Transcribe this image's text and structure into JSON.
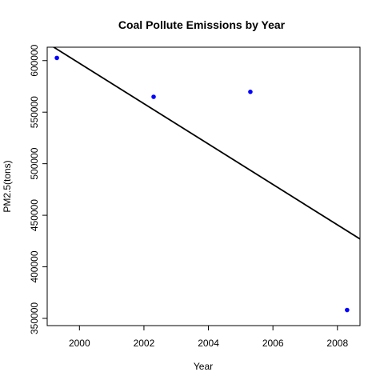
{
  "chart_data": {
    "type": "scatter",
    "title": "Coal Pollute Emissions by Year",
    "xlabel": "Year",
    "ylabel": "PM2.5(tons)",
    "xlim": [
      1999.0,
      2008.7
    ],
    "ylim": [
      343000,
      613000
    ],
    "x_ticks": [
      2000,
      2002,
      2004,
      2006,
      2008
    ],
    "y_ticks": [
      350000,
      400000,
      450000,
      500000,
      550000,
      600000
    ],
    "grid": false,
    "legend": "none",
    "points": [
      {
        "x": 1999.3,
        "y": 602600
      },
      {
        "x": 2002.3,
        "y": 564900
      },
      {
        "x": 2005.3,
        "y": 569700
      },
      {
        "x": 2008.3,
        "y": 358100
      }
    ],
    "point_color": "#0000ff",
    "trend_line": {
      "color": "#000000",
      "start": {
        "x": 1999.0,
        "y": 617000
      },
      "end": {
        "x": 2008.7,
        "y": 427000
      }
    }
  }
}
